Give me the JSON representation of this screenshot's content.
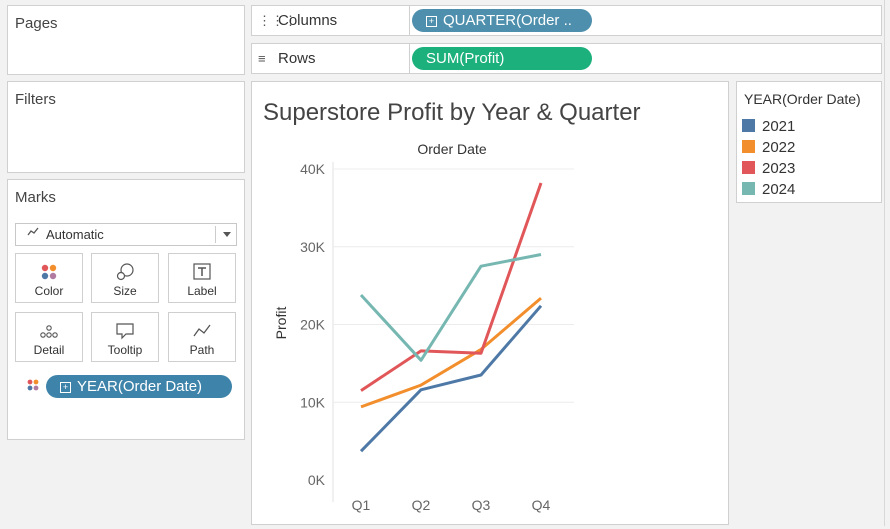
{
  "pages": {
    "title": "Pages"
  },
  "filters": {
    "title": "Filters"
  },
  "marks": {
    "title": "Marks",
    "mark_type": "Automatic",
    "mark_type_icon": "line-chart-icon",
    "cards": [
      {
        "label": "Color",
        "icon": "color-dots-icon"
      },
      {
        "label": "Size",
        "icon": "size-circles-icon"
      },
      {
        "label": "Label",
        "icon": "label-t-icon"
      },
      {
        "label": "Detail",
        "icon": "detail-dots-icon"
      },
      {
        "label": "Tooltip",
        "icon": "tooltip-bubble-icon"
      },
      {
        "label": "Path",
        "icon": "path-line-icon"
      }
    ],
    "color_pill": "YEAR(Order Date)"
  },
  "columns": {
    "label": "Columns",
    "icon": "columns-icon",
    "pill": "QUARTER(Order .."
  },
  "rows": {
    "label": "Rows",
    "icon": "rows-icon",
    "pill": "SUM(Profit)"
  },
  "legend": {
    "title": "YEAR(Order Date)",
    "items": [
      {
        "label": "2021",
        "color": "#4e79a7"
      },
      {
        "label": "2022",
        "color": "#f28e2b"
      },
      {
        "label": "2023",
        "color": "#e15759"
      },
      {
        "label": "2024",
        "color": "#76b7b2"
      }
    ]
  },
  "chart_data": {
    "type": "line",
    "title": "Superstore Profit by Year & Quarter",
    "header": "Order Date",
    "ylabel": "Profit",
    "categories": [
      "Q1",
      "Q2",
      "Q3",
      "Q4"
    ],
    "yticks": [
      "0K",
      "10K",
      "20K",
      "30K",
      "40K"
    ],
    "ylim": [
      0,
      40000
    ],
    "grid": true,
    "series": [
      {
        "name": "2021",
        "color": "#4e79a7",
        "values": [
          3700,
          11600,
          13500,
          22400
        ]
      },
      {
        "name": "2022",
        "color": "#f28e2b",
        "values": [
          9400,
          12200,
          16800,
          23400
        ]
      },
      {
        "name": "2023",
        "color": "#e15759",
        "values": [
          11500,
          16600,
          16300,
          38200
        ]
      },
      {
        "name": "2024",
        "color": "#76b7b2",
        "values": [
          23800,
          15400,
          27500,
          29000
        ]
      }
    ]
  },
  "colors": {
    "columns_pill": "#4d8fac",
    "rows_pill": "#1bb07c",
    "color_pill": "#3e83a9"
  }
}
